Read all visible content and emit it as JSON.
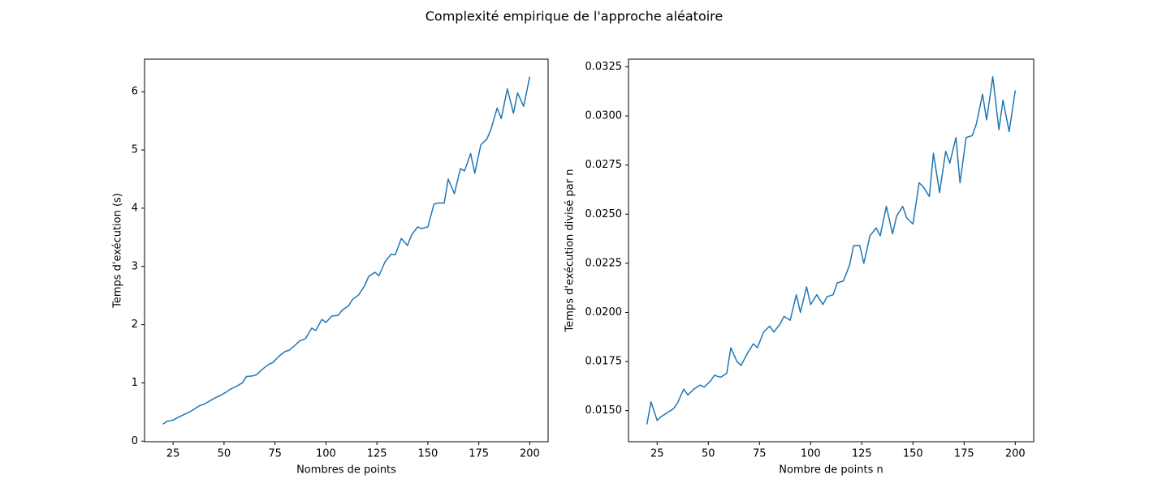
{
  "title": "Complexité empirique de l'approche aléatoire",
  "chart_data": [
    {
      "type": "line",
      "xlabel": "Nombres de points",
      "ylabel": "Temps d'exécution (s)",
      "x": [
        20,
        22,
        25,
        27,
        30,
        33,
        35,
        38,
        40,
        43,
        46,
        48,
        51,
        53,
        56,
        59,
        61,
        64,
        66,
        69,
        72,
        74,
        77,
        80,
        82,
        85,
        87,
        90,
        93,
        95,
        98,
        100,
        103,
        106,
        108,
        111,
        113,
        116,
        119,
        121,
        124,
        126,
        129,
        132,
        134,
        137,
        140,
        142,
        145,
        147,
        150,
        153,
        155,
        158,
        160,
        163,
        166,
        168,
        171,
        173,
        176,
        179,
        181,
        184,
        186,
        189,
        192,
        194,
        197,
        200
      ],
      "series": [
        {
          "color": "#1f77b4",
          "values": [
            0.29,
            0.34,
            0.36,
            0.4,
            0.45,
            0.5,
            0.54,
            0.61,
            0.63,
            0.69,
            0.75,
            0.78,
            0.84,
            0.89,
            0.94,
            1.0,
            1.11,
            1.12,
            1.14,
            1.24,
            1.32,
            1.35,
            1.46,
            1.54,
            1.56,
            1.65,
            1.72,
            1.76,
            1.94,
            1.9,
            2.09,
            2.04,
            2.15,
            2.16,
            2.25,
            2.32,
            2.43,
            2.51,
            2.67,
            2.83,
            2.9,
            2.84,
            3.08,
            3.21,
            3.2,
            3.48,
            3.36,
            3.54,
            3.68,
            3.65,
            3.68,
            4.07,
            4.09,
            4.09,
            4.5,
            4.25,
            4.68,
            4.64,
            4.94,
            4.6,
            5.09,
            5.19,
            5.36,
            5.72,
            5.54,
            6.05,
            5.63,
            5.98,
            5.75,
            6.26
          ]
        }
      ],
      "xlim": [
        11,
        209
      ],
      "ylim": [
        -0.01,
        6.56
      ],
      "xticks": [
        25,
        50,
        75,
        100,
        125,
        150,
        175,
        200
      ],
      "yticks": [
        0,
        1,
        2,
        3,
        4,
        5,
        6
      ]
    },
    {
      "type": "line",
      "xlabel": "Nombre de points n",
      "ylabel": "Temps d'exécution divisé par n",
      "x": [
        20,
        22,
        25,
        27,
        30,
        33,
        35,
        38,
        40,
        43,
        46,
        48,
        51,
        53,
        56,
        59,
        61,
        64,
        66,
        69,
        72,
        74,
        77,
        80,
        82,
        85,
        87,
        90,
        93,
        95,
        98,
        100,
        103,
        106,
        108,
        111,
        113,
        116,
        119,
        121,
        124,
        126,
        129,
        132,
        134,
        137,
        140,
        142,
        145,
        147,
        150,
        153,
        155,
        158,
        160,
        163,
        166,
        168,
        171,
        173,
        176,
        179,
        181,
        184,
        186,
        189,
        192,
        194,
        197,
        200
      ],
      "series": [
        {
          "color": "#1f77b4",
          "values": [
            0.0143,
            0.01545,
            0.0145,
            0.0147,
            0.0149,
            0.0151,
            0.0154,
            0.0161,
            0.0158,
            0.0161,
            0.0163,
            0.0162,
            0.0165,
            0.0168,
            0.0167,
            0.0169,
            0.0182,
            0.0175,
            0.0173,
            0.0179,
            0.0184,
            0.0182,
            0.019,
            0.0193,
            0.019,
            0.0194,
            0.0198,
            0.0196,
            0.0209,
            0.02,
            0.0213,
            0.0204,
            0.0209,
            0.0204,
            0.0208,
            0.0209,
            0.0215,
            0.0216,
            0.0224,
            0.0234,
            0.0234,
            0.0225,
            0.0239,
            0.0243,
            0.0239,
            0.0254,
            0.024,
            0.0249,
            0.0254,
            0.0248,
            0.0245,
            0.0266,
            0.0264,
            0.0259,
            0.0281,
            0.0261,
            0.0282,
            0.0276,
            0.0289,
            0.0266,
            0.0289,
            0.029,
            0.0296,
            0.0311,
            0.0298,
            0.032,
            0.0293,
            0.0308,
            0.0292,
            0.0313
          ]
        }
      ],
      "xlim": [
        11,
        209
      ],
      "ylim": [
        0.01342,
        0.03289
      ],
      "xticks": [
        25,
        50,
        75,
        100,
        125,
        150,
        175,
        200
      ],
      "yticks": [
        {
          "value": 0.015,
          "label": "0.0150"
        },
        {
          "value": 0.0175,
          "label": "0.0175"
        },
        {
          "value": 0.02,
          "label": "0.0200"
        },
        {
          "value": 0.0225,
          "label": "0.0225"
        },
        {
          "value": 0.025,
          "label": "0.0250"
        },
        {
          "value": 0.0275,
          "label": "0.0275"
        },
        {
          "value": 0.03,
          "label": "0.0300"
        },
        {
          "value": 0.0325,
          "label": "0.0325"
        }
      ]
    }
  ]
}
